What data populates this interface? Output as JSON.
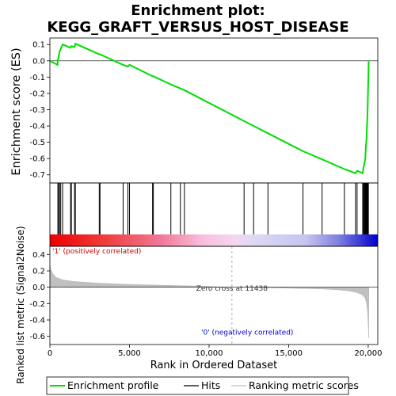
{
  "chart_data": {
    "title_line1": "Enrichment plot:",
    "title_line2": "KEGG_GRAFT_VERSUS_HOST_DISEASE",
    "es_panel": {
      "type": "line",
      "ylabel": "Enrichment score (ES)",
      "xlim": [
        0,
        20600
      ],
      "ylim": [
        -0.75,
        0.14
      ],
      "yticks": [
        0.1,
        0.0,
        -0.1,
        -0.2,
        -0.3,
        -0.4,
        -0.5,
        -0.6,
        -0.7
      ],
      "ytick_labels": [
        "0.1",
        "0.0",
        "-0.1",
        "-0.2",
        "-0.3",
        "-0.4",
        "-0.5",
        "-0.6",
        "-0.7"
      ],
      "color": "#00dd00",
      "series": [
        {
          "x": 0,
          "y": 0.0
        },
        {
          "x": 480,
          "y": -0.025
        },
        {
          "x": 500,
          "y": 0.005
        },
        {
          "x": 560,
          "y": 0.03
        },
        {
          "x": 600,
          "y": 0.055
        },
        {
          "x": 680,
          "y": 0.075
        },
        {
          "x": 800,
          "y": 0.1
        },
        {
          "x": 1300,
          "y": 0.08
        },
        {
          "x": 1350,
          "y": 0.09
        },
        {
          "x": 1550,
          "y": 0.085
        },
        {
          "x": 1600,
          "y": 0.105
        },
        {
          "x": 3100,
          "y": 0.04
        },
        {
          "x": 3150,
          "y": 0.04
        },
        {
          "x": 4600,
          "y": -0.025
        },
        {
          "x": 4900,
          "y": -0.035
        },
        {
          "x": 5000,
          "y": -0.025
        },
        {
          "x": 6450,
          "y": -0.095
        },
        {
          "x": 6500,
          "y": -0.095
        },
        {
          "x": 7600,
          "y": -0.145
        },
        {
          "x": 8200,
          "y": -0.17
        },
        {
          "x": 8450,
          "y": -0.18
        },
        {
          "x": 12200,
          "y": -0.37
        },
        {
          "x": 12800,
          "y": -0.4
        },
        {
          "x": 13700,
          "y": -0.445
        },
        {
          "x": 15900,
          "y": -0.555
        },
        {
          "x": 17100,
          "y": -0.605
        },
        {
          "x": 18500,
          "y": -0.665
        },
        {
          "x": 19200,
          "y": -0.69
        },
        {
          "x": 19300,
          "y": -0.675
        },
        {
          "x": 19650,
          "y": -0.69
        },
        {
          "x": 19700,
          "y": -0.66
        },
        {
          "x": 19820,
          "y": -0.6
        },
        {
          "x": 19850,
          "y": -0.53
        },
        {
          "x": 19900,
          "y": -0.47
        },
        {
          "x": 19920,
          "y": -0.41
        },
        {
          "x": 19950,
          "y": -0.34
        },
        {
          "x": 19970,
          "y": -0.27
        },
        {
          "x": 19990,
          "y": -0.18
        },
        {
          "x": 20010,
          "y": -0.1
        },
        {
          "x": 20030,
          "y": 0.0
        }
      ]
    },
    "hits_panel": {
      "hit_positions": [
        500,
        560,
        600,
        680,
        800,
        1300,
        1350,
        1550,
        1600,
        3100,
        3150,
        4600,
        4900,
        5000,
        6450,
        6500,
        7600,
        8200,
        8450,
        12200,
        12800,
        13700,
        15900,
        17100,
        18500,
        19200,
        19300,
        19650,
        19700,
        19750,
        19780,
        19800,
        19820,
        19850,
        19870,
        19900,
        19920,
        19950,
        19970,
        19990,
        20010
      ]
    },
    "metric_panel": {
      "type": "area",
      "ylabel": "Ranked list metric (Signal2Noise)",
      "xlabel": "Rank in Ordered Dataset",
      "xlim": [
        0,
        20600
      ],
      "ylim": [
        -0.7,
        0.5
      ],
      "xticks": [
        0,
        5000,
        10000,
        15000,
        20000
      ],
      "xtick_labels": [
        "0",
        "5,000",
        "10,000",
        "15,000",
        "20,000"
      ],
      "yticks": [
        0.4,
        0.2,
        0.0,
        -0.2,
        -0.4,
        -0.6
      ],
      "ytick_labels": [
        "0.4",
        "0.2",
        "0.0",
        "-0.2",
        "-0.4",
        "-0.6"
      ],
      "fill_color": "#c0c0c0",
      "series": [
        {
          "x": 0,
          "y": 0.28
        },
        {
          "x": 60,
          "y": 0.22
        },
        {
          "x": 200,
          "y": 0.16
        },
        {
          "x": 400,
          "y": 0.12
        },
        {
          "x": 800,
          "y": 0.09
        },
        {
          "x": 1500,
          "y": 0.07
        },
        {
          "x": 3000,
          "y": 0.05
        },
        {
          "x": 5000,
          "y": 0.035
        },
        {
          "x": 7000,
          "y": 0.025
        },
        {
          "x": 9000,
          "y": 0.015
        },
        {
          "x": 10500,
          "y": 0.005
        },
        {
          "x": 11438,
          "y": 0.0
        },
        {
          "x": 13000,
          "y": -0.005
        },
        {
          "x": 15000,
          "y": -0.012
        },
        {
          "x": 17000,
          "y": -0.02
        },
        {
          "x": 18000,
          "y": -0.03
        },
        {
          "x": 18800,
          "y": -0.045
        },
        {
          "x": 19300,
          "y": -0.065
        },
        {
          "x": 19600,
          "y": -0.09
        },
        {
          "x": 19800,
          "y": -0.13
        },
        {
          "x": 19900,
          "y": -0.2
        },
        {
          "x": 19960,
          "y": -0.3
        },
        {
          "x": 20000,
          "y": -0.45
        },
        {
          "x": 20030,
          "y": -0.62
        },
        {
          "x": 20040,
          "y": 0.0
        }
      ],
      "zero_cross_label": "Zero cross at 11438",
      "zero_cross_x": 11438,
      "positive_label": "'1' (positively correlated)",
      "negative_label": "'0' (negatively correlated)",
      "positive_label_color": "#cc0000",
      "negative_label_color": "#0000cc"
    },
    "legend": {
      "entries": [
        {
          "label": "Enrichment profile",
          "color": "#00dd00"
        },
        {
          "label": "Hits",
          "color": "#000000"
        },
        {
          "label": "Ranking metric scores",
          "color": "#c0c0c0"
        }
      ]
    }
  }
}
